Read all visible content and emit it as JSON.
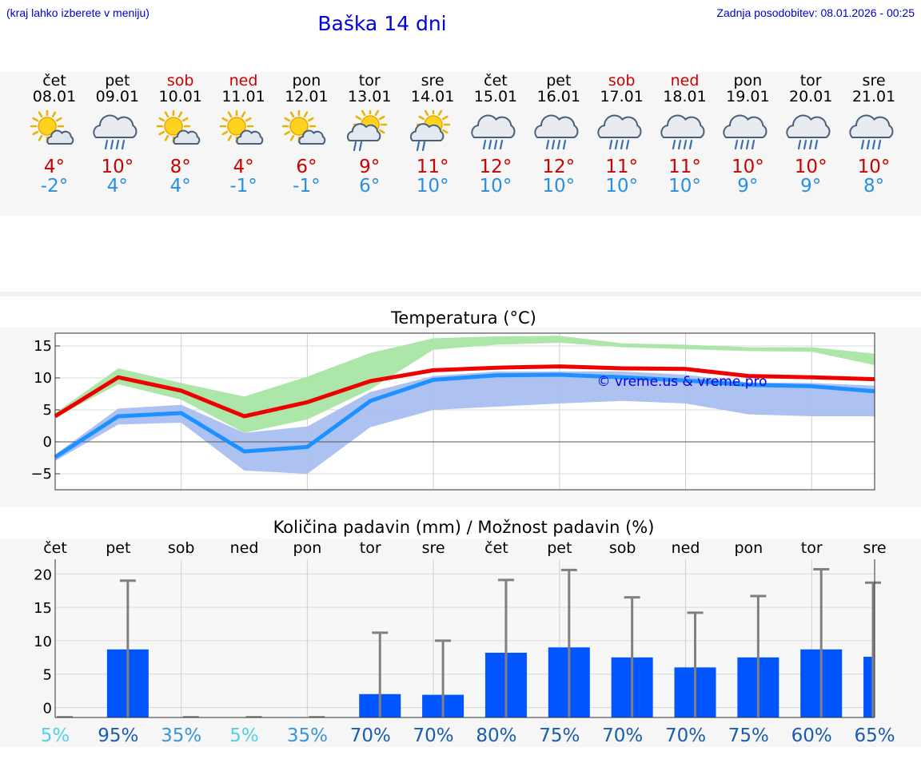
{
  "header": {
    "hint": "(kraj lahko izberete v meniju)",
    "title": "Baška 14 dni",
    "last_update": "Zadnja posodobitev: 08.01.2026 - 00:25"
  },
  "days": [
    {
      "name": "čet",
      "date": "08.01",
      "weekend": false,
      "icon": "sun-cloud-icon",
      "max": "4°",
      "min": "-2°"
    },
    {
      "name": "pet",
      "date": "09.01",
      "weekend": false,
      "icon": "rain-cloud-icon",
      "max": "10°",
      "min": "4°"
    },
    {
      "name": "sob",
      "date": "10.01",
      "weekend": true,
      "icon": "sun-cloud-icon",
      "max": "8°",
      "min": "4°"
    },
    {
      "name": "ned",
      "date": "11.01",
      "weekend": true,
      "icon": "sun-cloud-icon",
      "max": "4°",
      "min": "-1°"
    },
    {
      "name": "pon",
      "date": "12.01",
      "weekend": false,
      "icon": "sun-cloud-icon",
      "max": "6°",
      "min": "-1°"
    },
    {
      "name": "tor",
      "date": "13.01",
      "weekend": false,
      "icon": "sun-rain-icon",
      "max": "9°",
      "min": "6°"
    },
    {
      "name": "sre",
      "date": "14.01",
      "weekend": false,
      "icon": "sun-rain-icon",
      "max": "11°",
      "min": "10°"
    },
    {
      "name": "čet",
      "date": "15.01",
      "weekend": false,
      "icon": "rain-cloud-icon",
      "max": "12°",
      "min": "10°"
    },
    {
      "name": "pet",
      "date": "16.01",
      "weekend": false,
      "icon": "rain-cloud-icon",
      "max": "12°",
      "min": "10°"
    },
    {
      "name": "sob",
      "date": "17.01",
      "weekend": true,
      "icon": "rain-cloud-icon",
      "max": "11°",
      "min": "10°"
    },
    {
      "name": "ned",
      "date": "18.01",
      "weekend": true,
      "icon": "rain-cloud-icon",
      "max": "11°",
      "min": "10°"
    },
    {
      "name": "pon",
      "date": "19.01",
      "weekend": false,
      "icon": "rain-cloud-icon",
      "max": "10°",
      "min": "9°"
    },
    {
      "name": "tor",
      "date": "20.01",
      "weekend": false,
      "icon": "rain-cloud-icon",
      "max": "10°",
      "min": "9°"
    },
    {
      "name": "sre",
      "date": "21.01",
      "weekend": false,
      "icon": "rain-cloud-icon",
      "max": "10°",
      "min": "8°"
    }
  ],
  "colors": {
    "max_line": "#ee0000",
    "min_line": "#1e90ff",
    "band_max": "#a8e6a4",
    "band_overlap": "#7fc9a8",
    "band_min": "#a9bff0",
    "bar": "#0055ff",
    "whisker": "#808080"
  },
  "chart_data": [
    {
      "type": "line",
      "title": "Temperatura (°C)",
      "watermark": "© vreme.us & vreme.pro",
      "x": [
        0,
        1,
        2,
        3,
        4,
        5,
        6,
        7,
        8,
        9,
        10,
        11,
        12,
        13
      ],
      "ylim": [
        -7.5,
        17
      ],
      "yticks": [
        15,
        10,
        5,
        0,
        -5
      ],
      "ytick_labels": [
        "15",
        "10",
        "5",
        "0",
        "−5"
      ],
      "series": [
        {
          "name": "max",
          "values": [
            4,
            10.1,
            8,
            4,
            6.2,
            9.5,
            11.2,
            11.6,
            11.8,
            11.5,
            11.4,
            10.3,
            10.1,
            9.8
          ]
        },
        {
          "name": "min",
          "values": [
            -2.4,
            4,
            4.5,
            -1.5,
            -0.8,
            6.4,
            9.7,
            10.4,
            10.5,
            10.1,
            9.6,
            8.9,
            8.7,
            7.9
          ]
        }
      ],
      "max_band": {
        "lower": [
          3.8,
          9,
          6.6,
          1.4,
          3.5,
          8.2,
          14.4,
          15.2,
          15.5,
          14.8,
          14.5,
          14.2,
          14.1,
          12
        ],
        "upper": [
          4.5,
          11.5,
          9.2,
          7.1,
          10.2,
          13.9,
          16.2,
          16.5,
          16.6,
          15.4,
          15.2,
          14.8,
          14.8,
          13.8
        ]
      },
      "min_band": {
        "lower": [
          -3,
          2.7,
          3,
          -4.5,
          -5,
          2.3,
          5,
          5.5,
          6,
          6.4,
          6,
          4.3,
          4,
          4
        ],
        "upper": [
          -2,
          5.2,
          5.8,
          1.4,
          2.4,
          7.8,
          10.3,
          11,
          11,
          11,
          10.5,
          9.3,
          9.2,
          8.8
        ]
      }
    },
    {
      "type": "bar",
      "title": "Količina padavin (mm) / Možnost padavin (%)",
      "categories": [
        "čet",
        "pet",
        "sob",
        "ned",
        "pon",
        "tor",
        "sre",
        "čet",
        "pet",
        "sob",
        "ned",
        "pon",
        "tor",
        "sre"
      ],
      "values": [
        0,
        8.7,
        0,
        0,
        0,
        2,
        1.9,
        8.2,
        9,
        7.5,
        6,
        7.5,
        8.7,
        7.6
      ],
      "whisker_max": [
        0,
        19,
        0,
        0,
        0,
        11.2,
        10,
        19.1,
        20.6,
        16.5,
        14.2,
        16.7,
        20.7,
        18.7
      ],
      "ylim": [
        -1.5,
        22.2
      ],
      "yticks": [
        20,
        15,
        10,
        5,
        0
      ],
      "ytick_labels": [
        "20",
        "15",
        "10",
        "5",
        "0"
      ],
      "probabilities": [
        "5%",
        "95%",
        "35%",
        "5%",
        "35%",
        "70%",
        "70%",
        "80%",
        "75%",
        "70%",
        "70%",
        "75%",
        "60%",
        "65%"
      ],
      "probability_values": [
        5,
        95,
        35,
        5,
        35,
        70,
        70,
        80,
        75,
        70,
        70,
        75,
        60,
        65
      ]
    }
  ]
}
